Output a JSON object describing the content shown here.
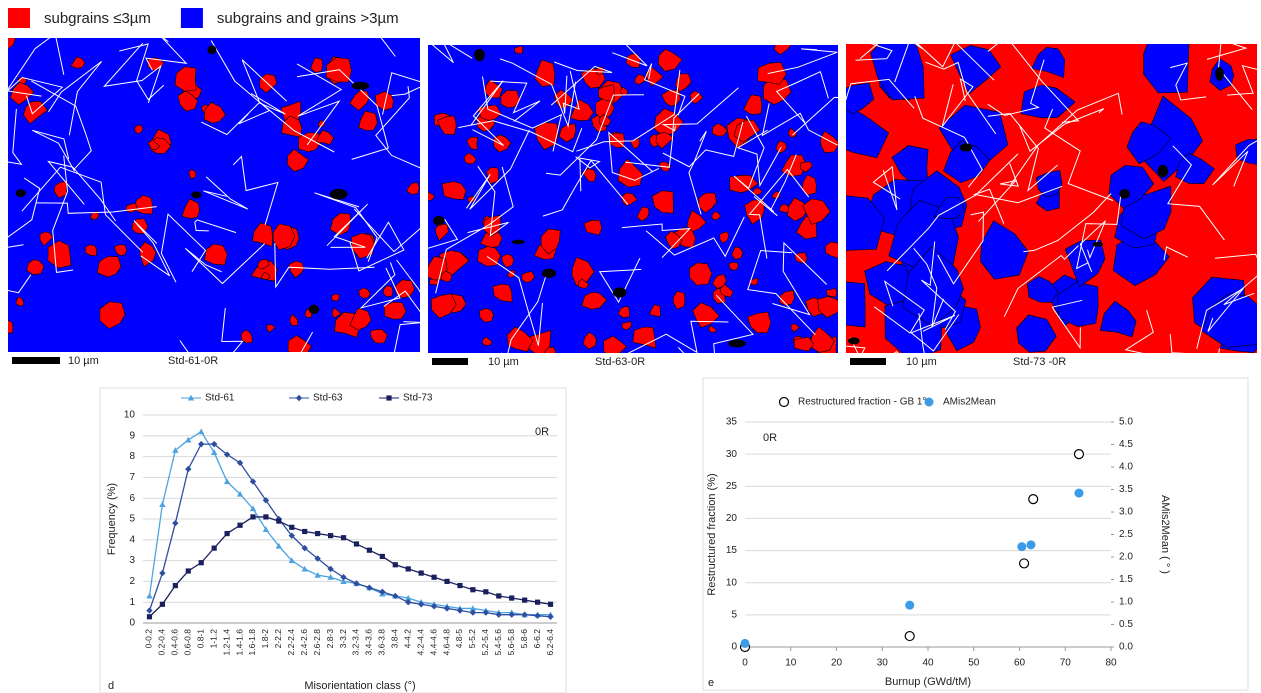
{
  "legend": {
    "items": [
      {
        "label": "subgrains ≤3µm",
        "color": "#ff0000"
      },
      {
        "label": "subgrains and grains >3µm",
        "color": "#0000ff"
      }
    ]
  },
  "micrographs": [
    {
      "scale_bar": "10 µm",
      "label": "Std-61-0R"
    },
    {
      "scale_bar": "10 µm",
      "label": "Std-63-0R"
    },
    {
      "scale_bar": "10 µm",
      "label": "Std-73 -0R"
    }
  ],
  "chart_data": [
    {
      "type": "line",
      "panel": "d",
      "annotation": "0R",
      "xlabel": "Misorientation class (°)",
      "ylabel": "Frequency (%)",
      "categories": [
        "0-0.2",
        "0.2-0.4",
        "0.4-0.6",
        "0.6-0.8",
        "0.8-1",
        "1-1.2",
        "1.2-1.4",
        "1.4-1.6",
        "1.6-1.8",
        "1.8-2",
        "2-2.2",
        "2.2-2.4",
        "2.4-2.6",
        "2.6-2.8",
        "2.8-3",
        "3-3.2",
        "3.2-3.4",
        "3.4-3.6",
        "3.6-3.8",
        "3.8-4",
        "4-4.2",
        "4.2-4.4",
        "4.4-4.6",
        "4.6-4.8",
        "4.8-5",
        "5-5.2",
        "5.2-5.4",
        "5.4-5.6",
        "5.6-5.8",
        "5.8-6",
        "6-6.2",
        "6.2-6.4"
      ],
      "series": [
        {
          "name": "Std-61",
          "color": "#4da3e0",
          "marker": "triangle",
          "values": [
            1.3,
            5.7,
            8.3,
            8.8,
            9.2,
            8.2,
            6.8,
            6.2,
            5.5,
            4.5,
            3.7,
            3.0,
            2.6,
            2.3,
            2.2,
            2.0,
            1.9,
            1.7,
            1.4,
            1.3,
            1.2,
            1.0,
            0.9,
            0.8,
            0.7,
            0.7,
            0.6,
            0.5,
            0.5,
            0.4,
            0.4,
            0.4
          ]
        },
        {
          "name": "Std-63",
          "color": "#2e4fa0",
          "marker": "diamond",
          "values": [
            0.6,
            2.4,
            4.8,
            7.4,
            8.6,
            8.6,
            8.1,
            7.7,
            6.8,
            5.9,
            5.0,
            4.2,
            3.6,
            3.1,
            2.6,
            2.2,
            1.9,
            1.7,
            1.5,
            1.3,
            1.0,
            0.9,
            0.8,
            0.7,
            0.6,
            0.5,
            0.5,
            0.4,
            0.4,
            0.4,
            0.35,
            0.3
          ]
        },
        {
          "name": "Std-73",
          "color": "#1a1f5e",
          "marker": "square",
          "values": [
            0.3,
            0.9,
            1.8,
            2.5,
            2.9,
            3.6,
            4.3,
            4.7,
            5.1,
            5.1,
            4.9,
            4.6,
            4.4,
            4.3,
            4.2,
            4.1,
            3.8,
            3.5,
            3.2,
            2.8,
            2.6,
            2.4,
            2.2,
            2.0,
            1.8,
            1.6,
            1.5,
            1.3,
            1.2,
            1.1,
            1.0,
            0.9
          ]
        }
      ],
      "ylim": [
        0,
        10
      ],
      "yticks": [
        0,
        1,
        2,
        3,
        4,
        5,
        6,
        7,
        8,
        9,
        10
      ],
      "grid": true,
      "legend": "top"
    },
    {
      "type": "scatter",
      "panel": "e",
      "annotation": "0R",
      "xlabel": "Burnup (GWd/tM)",
      "ylabel": "Restructured fraction (%)",
      "y2label": "AMis2Mean ( ° )",
      "series": [
        {
          "name": "Restructured fraction - GB 1°",
          "color": "#000000",
          "marker": "open-circle",
          "x": [
            0,
            36,
            61,
            63,
            73
          ],
          "values": [
            0,
            1.7,
            13,
            23,
            30
          ]
        },
        {
          "name": "AMis2Mean",
          "color": "#3a9be8",
          "marker": "circle",
          "axis": "y2",
          "x": [
            0,
            36,
            60.5,
            62.5,
            73
          ],
          "values": [
            0.08,
            0.93,
            2.23,
            2.27,
            3.42
          ]
        }
      ],
      "xlim": [
        0,
        80
      ],
      "xticks": [
        0,
        10,
        20,
        30,
        40,
        50,
        60,
        70,
        80
      ],
      "ylim": [
        0,
        35
      ],
      "yticks": [
        0,
        5,
        10,
        15,
        20,
        25,
        30,
        35
      ],
      "y2lim": [
        0,
        5
      ],
      "y2ticks": [
        {
          "value": 0,
          "label": "0.0"
        },
        0.5,
        {
          "value": 1,
          "label": "1.0"
        },
        1.5,
        {
          "value": 2,
          "label": "2.0"
        },
        2.5,
        {
          "value": 3,
          "label": "3.0"
        },
        3.5,
        {
          "value": 4,
          "label": "4.0"
        },
        4.5,
        {
          "value": 5,
          "label": "5.0"
        }
      ],
      "grid": true,
      "legend": "top"
    }
  ]
}
